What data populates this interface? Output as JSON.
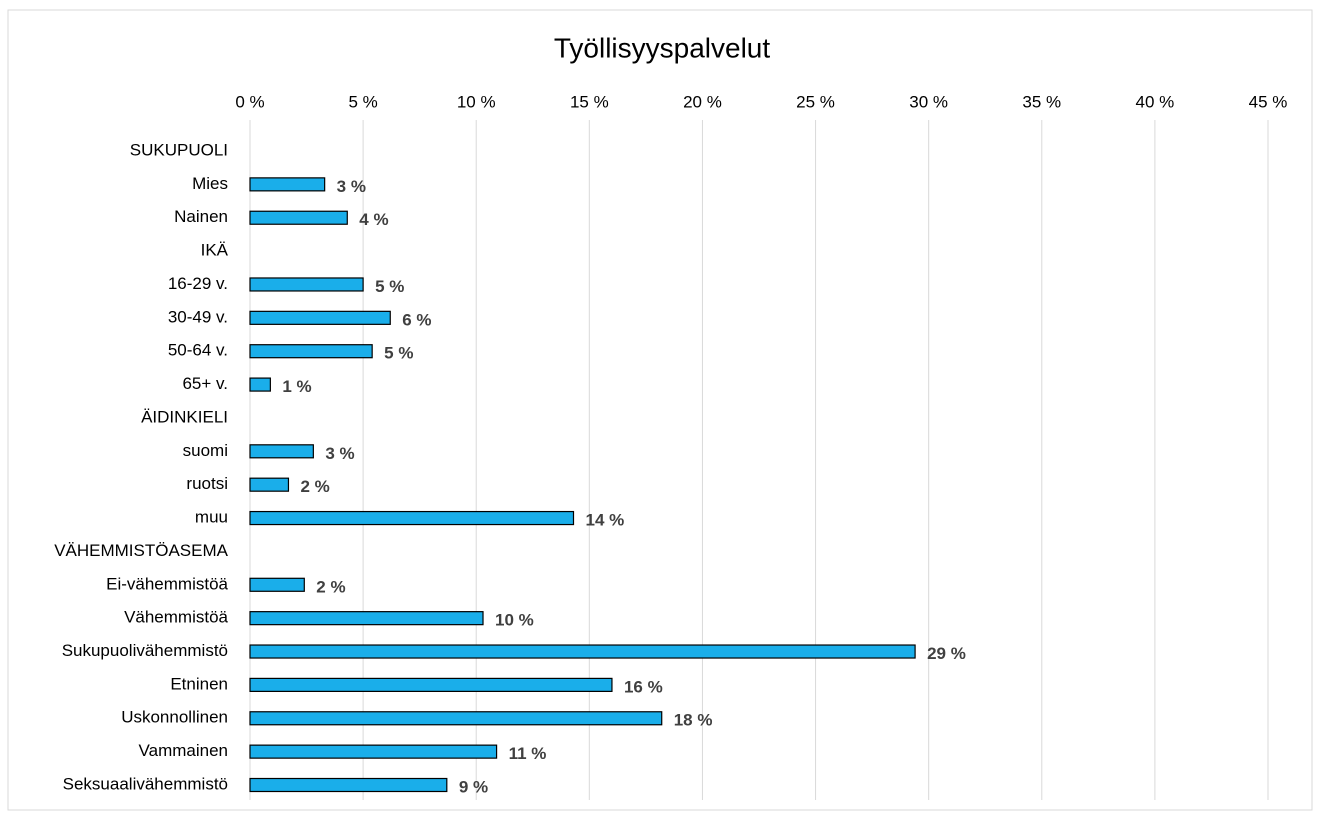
{
  "chart_data": {
    "type": "hbar",
    "title": "Työllisyyspalvelut",
    "categories": [
      "SUKUPUOLI",
      "Mies",
      "Nainen",
      "IKÄ",
      "16-29 v.",
      "30-49 v.",
      "50-64 v.",
      "65+ v.",
      "ÄIDINKIELI",
      "suomi",
      "ruotsi",
      "muu",
      "VÄHEMMISTÖASEMA",
      "Ei-vähemmistöä",
      "Vähemmistöä",
      "Sukupuolivähemmistö",
      "Etninen",
      "Uskonnollinen",
      "Vammainen",
      "Seksuaalivähemmistö"
    ],
    "values": [
      null,
      3.3,
      4.3,
      null,
      5.0,
      6.2,
      5.4,
      0.9,
      null,
      2.8,
      1.7,
      14.3,
      null,
      2.4,
      10.3,
      29.4,
      16.0,
      18.2,
      10.9,
      8.7
    ],
    "value_labels": [
      null,
      "3 %",
      "4 %",
      null,
      "5 %",
      "6 %",
      "5 %",
      "1 %",
      null,
      "3 %",
      "2 %",
      "14 %",
      null,
      "2 %",
      "10 %",
      "29 %",
      "16 %",
      "18 %",
      "11 %",
      "9 %"
    ],
    "color": "#1aaeea",
    "xlim": [
      0,
      45
    ],
    "xticks": [
      {
        "value": 0,
        "label": "0 %"
      },
      {
        "value": 5,
        "label": "5 %"
      },
      {
        "value": 10,
        "label": "10 %"
      },
      {
        "value": 15,
        "label": "15 %"
      },
      {
        "value": 20,
        "label": "20 %"
      },
      {
        "value": 25,
        "label": "25 %"
      },
      {
        "value": 30,
        "label": "30 %"
      },
      {
        "value": 35,
        "label": "35 %"
      },
      {
        "value": 40,
        "label": "40 %"
      },
      {
        "value": 45,
        "label": "45 %"
      }
    ],
    "grid": true
  }
}
